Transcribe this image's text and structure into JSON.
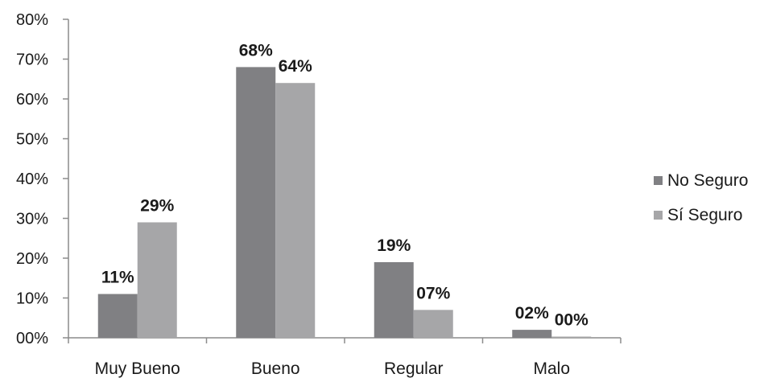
{
  "chart_data": {
    "type": "bar",
    "categories": [
      "Muy Bueno",
      "Bueno",
      "Regular",
      "Malo"
    ],
    "series": [
      {
        "name": "No Seguro",
        "values": [
          11,
          68,
          19,
          2
        ],
        "labels": [
          "11%",
          "68%",
          "19%",
          "02%"
        ],
        "color": "#808083"
      },
      {
        "name": "Sí Seguro",
        "values": [
          29,
          64,
          7,
          0.3
        ],
        "labels": [
          "29%",
          "64%",
          "07%",
          "00%"
        ],
        "color": "#a6a6a8"
      }
    ],
    "ylim": [
      0,
      80
    ],
    "yticks": [
      0,
      10,
      20,
      30,
      40,
      50,
      60,
      70,
      80
    ],
    "ytick_labels": [
      "00%",
      "10%",
      "20%",
      "30%",
      "40%",
      "50%",
      "60%",
      "70%",
      "80%"
    ],
    "title": "",
    "xlabel": "",
    "ylabel": "",
    "grid": false,
    "legend_position": "right"
  }
}
